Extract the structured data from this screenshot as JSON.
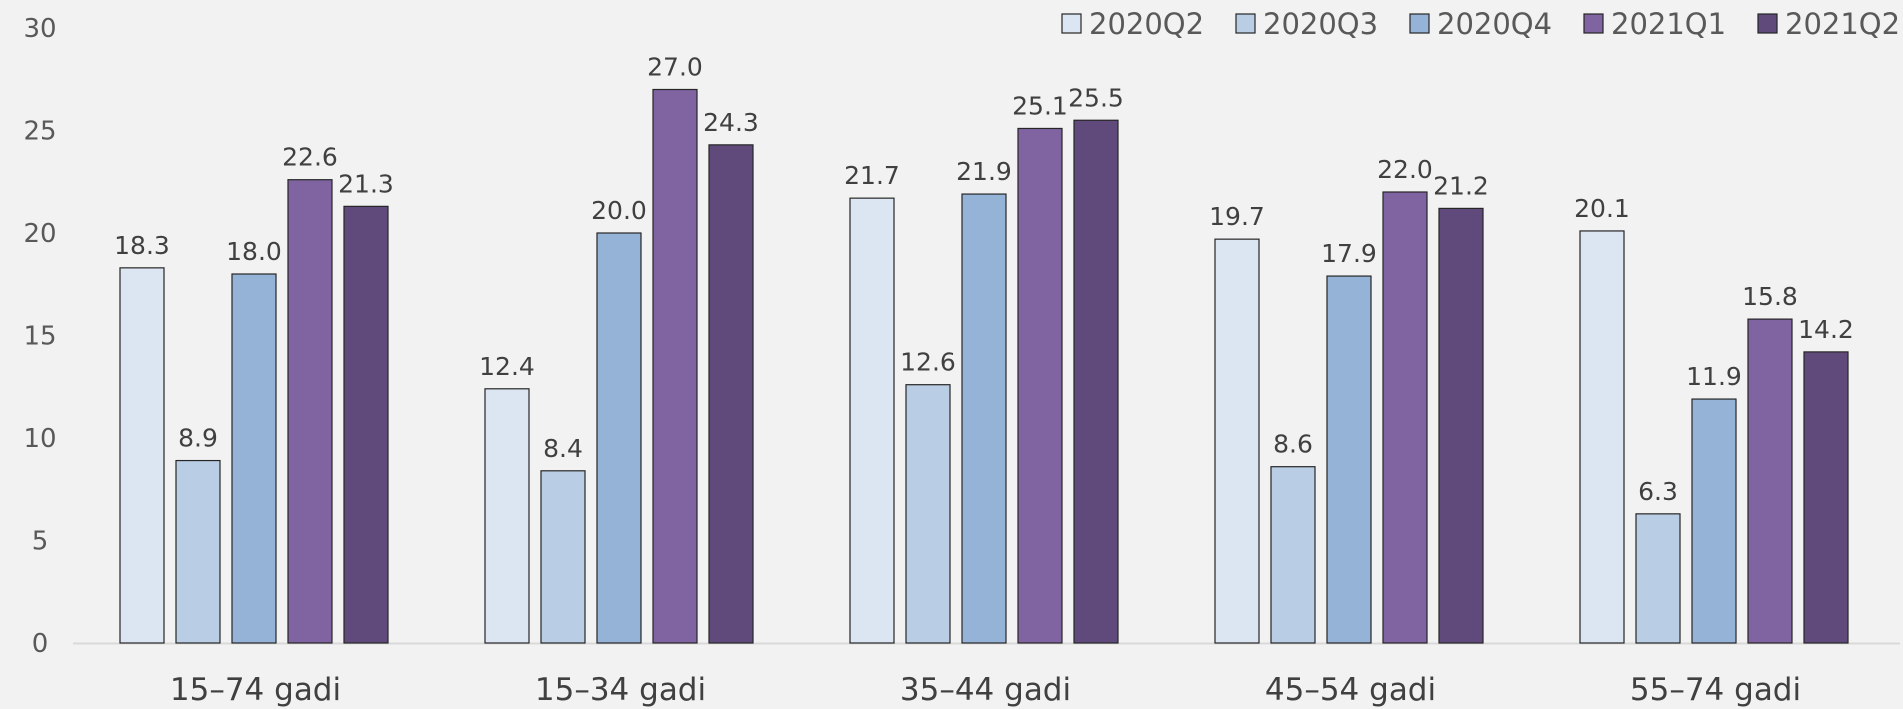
{
  "chart_data": {
    "type": "bar",
    "categories": [
      "15–74 gadi",
      "15–34 gadi",
      "35–44 gadi",
      "45–54 gadi",
      "55–74 gadi"
    ],
    "series": [
      {
        "name": "2020Q2",
        "color": "#dce6f2",
        "values": [
          18.3,
          12.4,
          21.7,
          19.7,
          20.1
        ]
      },
      {
        "name": "2020Q3",
        "color": "#b9cde5",
        "values": [
          8.9,
          8.4,
          12.6,
          8.6,
          6.3
        ]
      },
      {
        "name": "2020Q4",
        "color": "#95b3d7",
        "values": [
          18.0,
          20.0,
          21.9,
          17.9,
          11.9
        ]
      },
      {
        "name": "2021Q1",
        "color": "#8064a2",
        "values": [
          22.6,
          27.0,
          25.1,
          22.0,
          15.8
        ]
      },
      {
        "name": "2021Q2",
        "color": "#604a7b",
        "values": [
          21.3,
          24.3,
          25.5,
          21.2,
          14.2
        ]
      }
    ],
    "ylim": [
      0,
      30
    ],
    "yticks": [
      0,
      5,
      10,
      15,
      20,
      25,
      30
    ],
    "grid": false,
    "legend_position": "top-right",
    "xlabel": "",
    "ylabel": ""
  }
}
